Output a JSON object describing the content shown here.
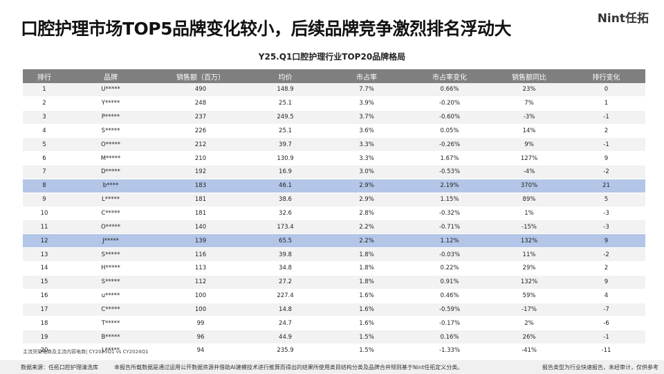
{
  "header": {
    "title": "口腔护理市场TOP5品牌变化较小，后续品牌竞争激烈排名浮动大",
    "logo": "Nint任拓"
  },
  "table": {
    "title": "Y25.Q1口腔护理行业TOP20品牌格局",
    "columns": [
      "排行",
      "品牌",
      "销售额（百万）",
      "均价",
      "市占率",
      "市占率变化",
      "销售额同比",
      "排行变化"
    ],
    "rows": [
      [
        "1",
        "U*****",
        "490",
        "148.9",
        "7.7%",
        "0.66%",
        "23%",
        "0"
      ],
      [
        "2",
        "Y*****",
        "248",
        "25.1",
        "3.9%",
        "-0.20%",
        "7%",
        "1"
      ],
      [
        "3",
        "P*****",
        "237",
        "249.5",
        "3.7%",
        "-0.60%",
        "-3%",
        "-1"
      ],
      [
        "4",
        "S*****",
        "226",
        "25.1",
        "3.6%",
        "0.05%",
        "14%",
        "2"
      ],
      [
        "5",
        "O*****",
        "212",
        "39.7",
        "3.3%",
        "-0.26%",
        "9%",
        "-1"
      ],
      [
        "6",
        "M*****",
        "210",
        "130.9",
        "3.3%",
        "1.67%",
        "127%",
        "9"
      ],
      [
        "7",
        "D*****",
        "192",
        "16.9",
        "3.0%",
        "-0.53%",
        "-4%",
        "-2"
      ],
      [
        "8",
        "b****",
        "183",
        "46.1",
        "2.9%",
        "2.19%",
        "370%",
        "21"
      ],
      [
        "9",
        "L*****",
        "181",
        "38.6",
        "2.9%",
        "1.15%",
        "89%",
        "5"
      ],
      [
        "10",
        "C*****",
        "181",
        "32.6",
        "2.8%",
        "-0.32%",
        "1%",
        "-3"
      ],
      [
        "11",
        "O*****",
        "140",
        "173.4",
        "2.2%",
        "-0.71%",
        "-15%",
        "-3"
      ],
      [
        "12",
        "J*****",
        "139",
        "65.5",
        "2.2%",
        "1.12%",
        "132%",
        "9"
      ],
      [
        "13",
        "S*****",
        "116",
        "39.8",
        "1.8%",
        "-0.03%",
        "11%",
        "-2"
      ],
      [
        "14",
        "H*****",
        "113",
        "34.8",
        "1.8%",
        "0.22%",
        "29%",
        "2"
      ],
      [
        "15",
        "S*****",
        "112",
        "27.2",
        "1.8%",
        "0.91%",
        "132%",
        "9"
      ],
      [
        "16",
        "u*****",
        "100",
        "227.4",
        "1.6%",
        "0.46%",
        "59%",
        "4"
      ],
      [
        "17",
        "C*****",
        "100",
        "14.8",
        "1.6%",
        "-0.59%",
        "-17%",
        "-7"
      ],
      [
        "18",
        "T*****",
        "99",
        "24.7",
        "1.6%",
        "-0.17%",
        "2%",
        "-6"
      ],
      [
        "19",
        "B*****",
        "96",
        "44.9",
        "1.5%",
        "0.16%",
        "26%",
        "-1"
      ],
      [
        "20",
        "L*****",
        "94",
        "235.9",
        "1.5%",
        "-1.33%",
        "-41%",
        "-11"
      ]
    ]
  },
  "footnote": "主流货架电商及主流内容电商| CY2025Q1 vs CY2024Q1",
  "footer": {
    "source": "数据来源：任拓口腔护理清洗库",
    "disclaimer": "本报告所载数据是通过运用公开数据资源并借助AI建模技术进行推算而得出的结果所使用类目结构分类及品牌合并规则基于Nint任拓定义分类。",
    "note": "报告类型为行业快速报告，未经审计，仅供参考"
  }
}
